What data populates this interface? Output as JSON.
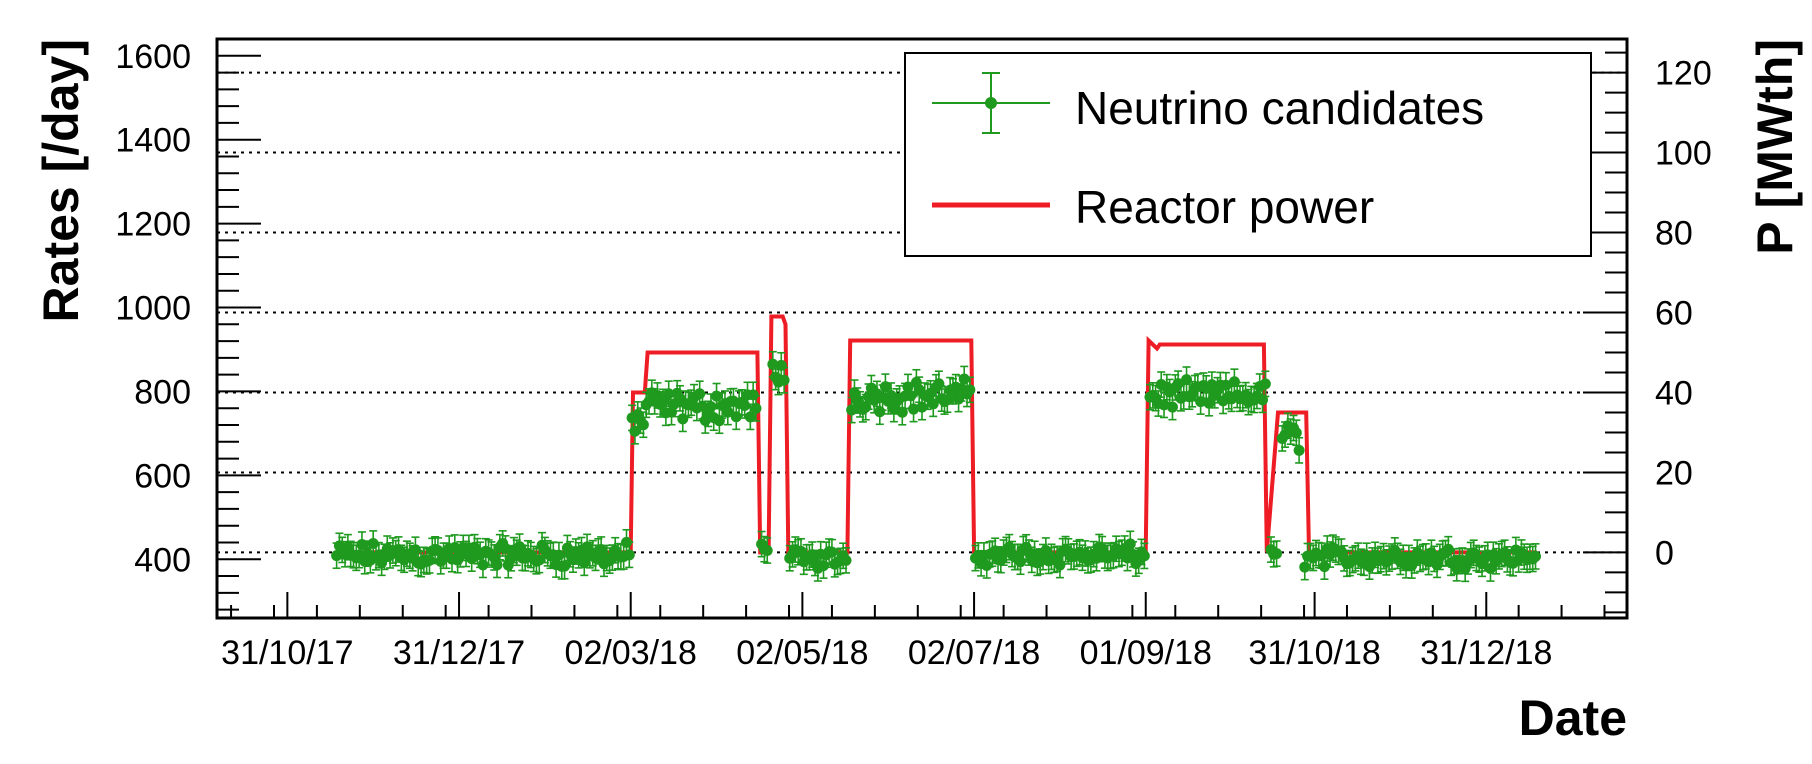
{
  "chart_data": {
    "type": "scatter",
    "x_axis": {
      "label": "Date",
      "tick_labels": [
        "31/10/17",
        "31/12/17",
        "02/03/18",
        "02/05/18",
        "02/07/18",
        "01/09/18",
        "31/10/18",
        "31/12/18"
      ],
      "tick_days": [
        0,
        61,
        122,
        183,
        244,
        305,
        365,
        426
      ],
      "range_days": [
        -25,
        476
      ]
    },
    "y_axis_left": {
      "label": "Rates [/day]",
      "ylim": [
        260,
        1640
      ],
      "ticks": [
        400,
        600,
        800,
        1000,
        1200,
        1400,
        1600
      ]
    },
    "y_axis_right": {
      "label": "P [MWth]",
      "ylim": [
        -16.4,
        128.4
      ],
      "ticks": [
        0,
        20,
        40,
        60,
        80,
        100,
        120
      ]
    },
    "grid": {
      "horizontal_dotted_at_right_ticks": true
    },
    "legend": {
      "position": "top-right"
    },
    "colors": {
      "neutrino": "#1f9a1f",
      "reactor": "#ee1c25"
    },
    "series": [
      {
        "name": "Neutrino candidates",
        "style": "points-with-errorbars",
        "error": 30,
        "segments": [
          {
            "x_start": 17,
            "x_end": 122,
            "mean": 410,
            "spread": 35
          },
          {
            "x_start": 122,
            "x_end": 127,
            "mean": 730,
            "spread": 45
          },
          {
            "x_start": 127,
            "x_end": 167,
            "mean": 765,
            "spread": 45
          },
          {
            "x_start": 168,
            "x_end": 171,
            "mean": 420,
            "spread": 25
          },
          {
            "x_start": 172,
            "x_end": 177,
            "mean": 850,
            "spread": 35
          },
          {
            "x_start": 178,
            "x_end": 199,
            "mean": 400,
            "spread": 30
          },
          {
            "x_start": 200,
            "x_end": 243,
            "mean": 790,
            "spread": 45
          },
          {
            "x_start": 244,
            "x_end": 305,
            "mean": 410,
            "spread": 30
          },
          {
            "x_start": 306,
            "x_end": 348,
            "mean": 790,
            "spread": 40
          },
          {
            "x_start": 349,
            "x_end": 352,
            "mean": 420,
            "spread": 30
          },
          {
            "x_start": 353,
            "x_end": 360,
            "mean": 690,
            "spread": 45
          },
          {
            "x_start": 361,
            "x_end": 444,
            "mean": 405,
            "spread": 30
          }
        ]
      },
      {
        "name": "Reactor power",
        "style": "line",
        "axis": "right",
        "points": [
          [
            17,
            0
          ],
          [
            122,
            0
          ],
          [
            122.8,
            40
          ],
          [
            127,
            40
          ],
          [
            128,
            50
          ],
          [
            167,
            50
          ],
          [
            168,
            0
          ],
          [
            171,
            0
          ],
          [
            172,
            59
          ],
          [
            176,
            59
          ],
          [
            177,
            57
          ],
          [
            178,
            0
          ],
          [
            199,
            0
          ],
          [
            200,
            53
          ],
          [
            243,
            53
          ],
          [
            244,
            0
          ],
          [
            305,
            0
          ],
          [
            306,
            53
          ],
          [
            309,
            51
          ],
          [
            310,
            52
          ],
          [
            347,
            52
          ],
          [
            348,
            0
          ],
          [
            352,
            35
          ],
          [
            362,
            35
          ],
          [
            363,
            0
          ],
          [
            444,
            0
          ]
        ]
      }
    ]
  }
}
